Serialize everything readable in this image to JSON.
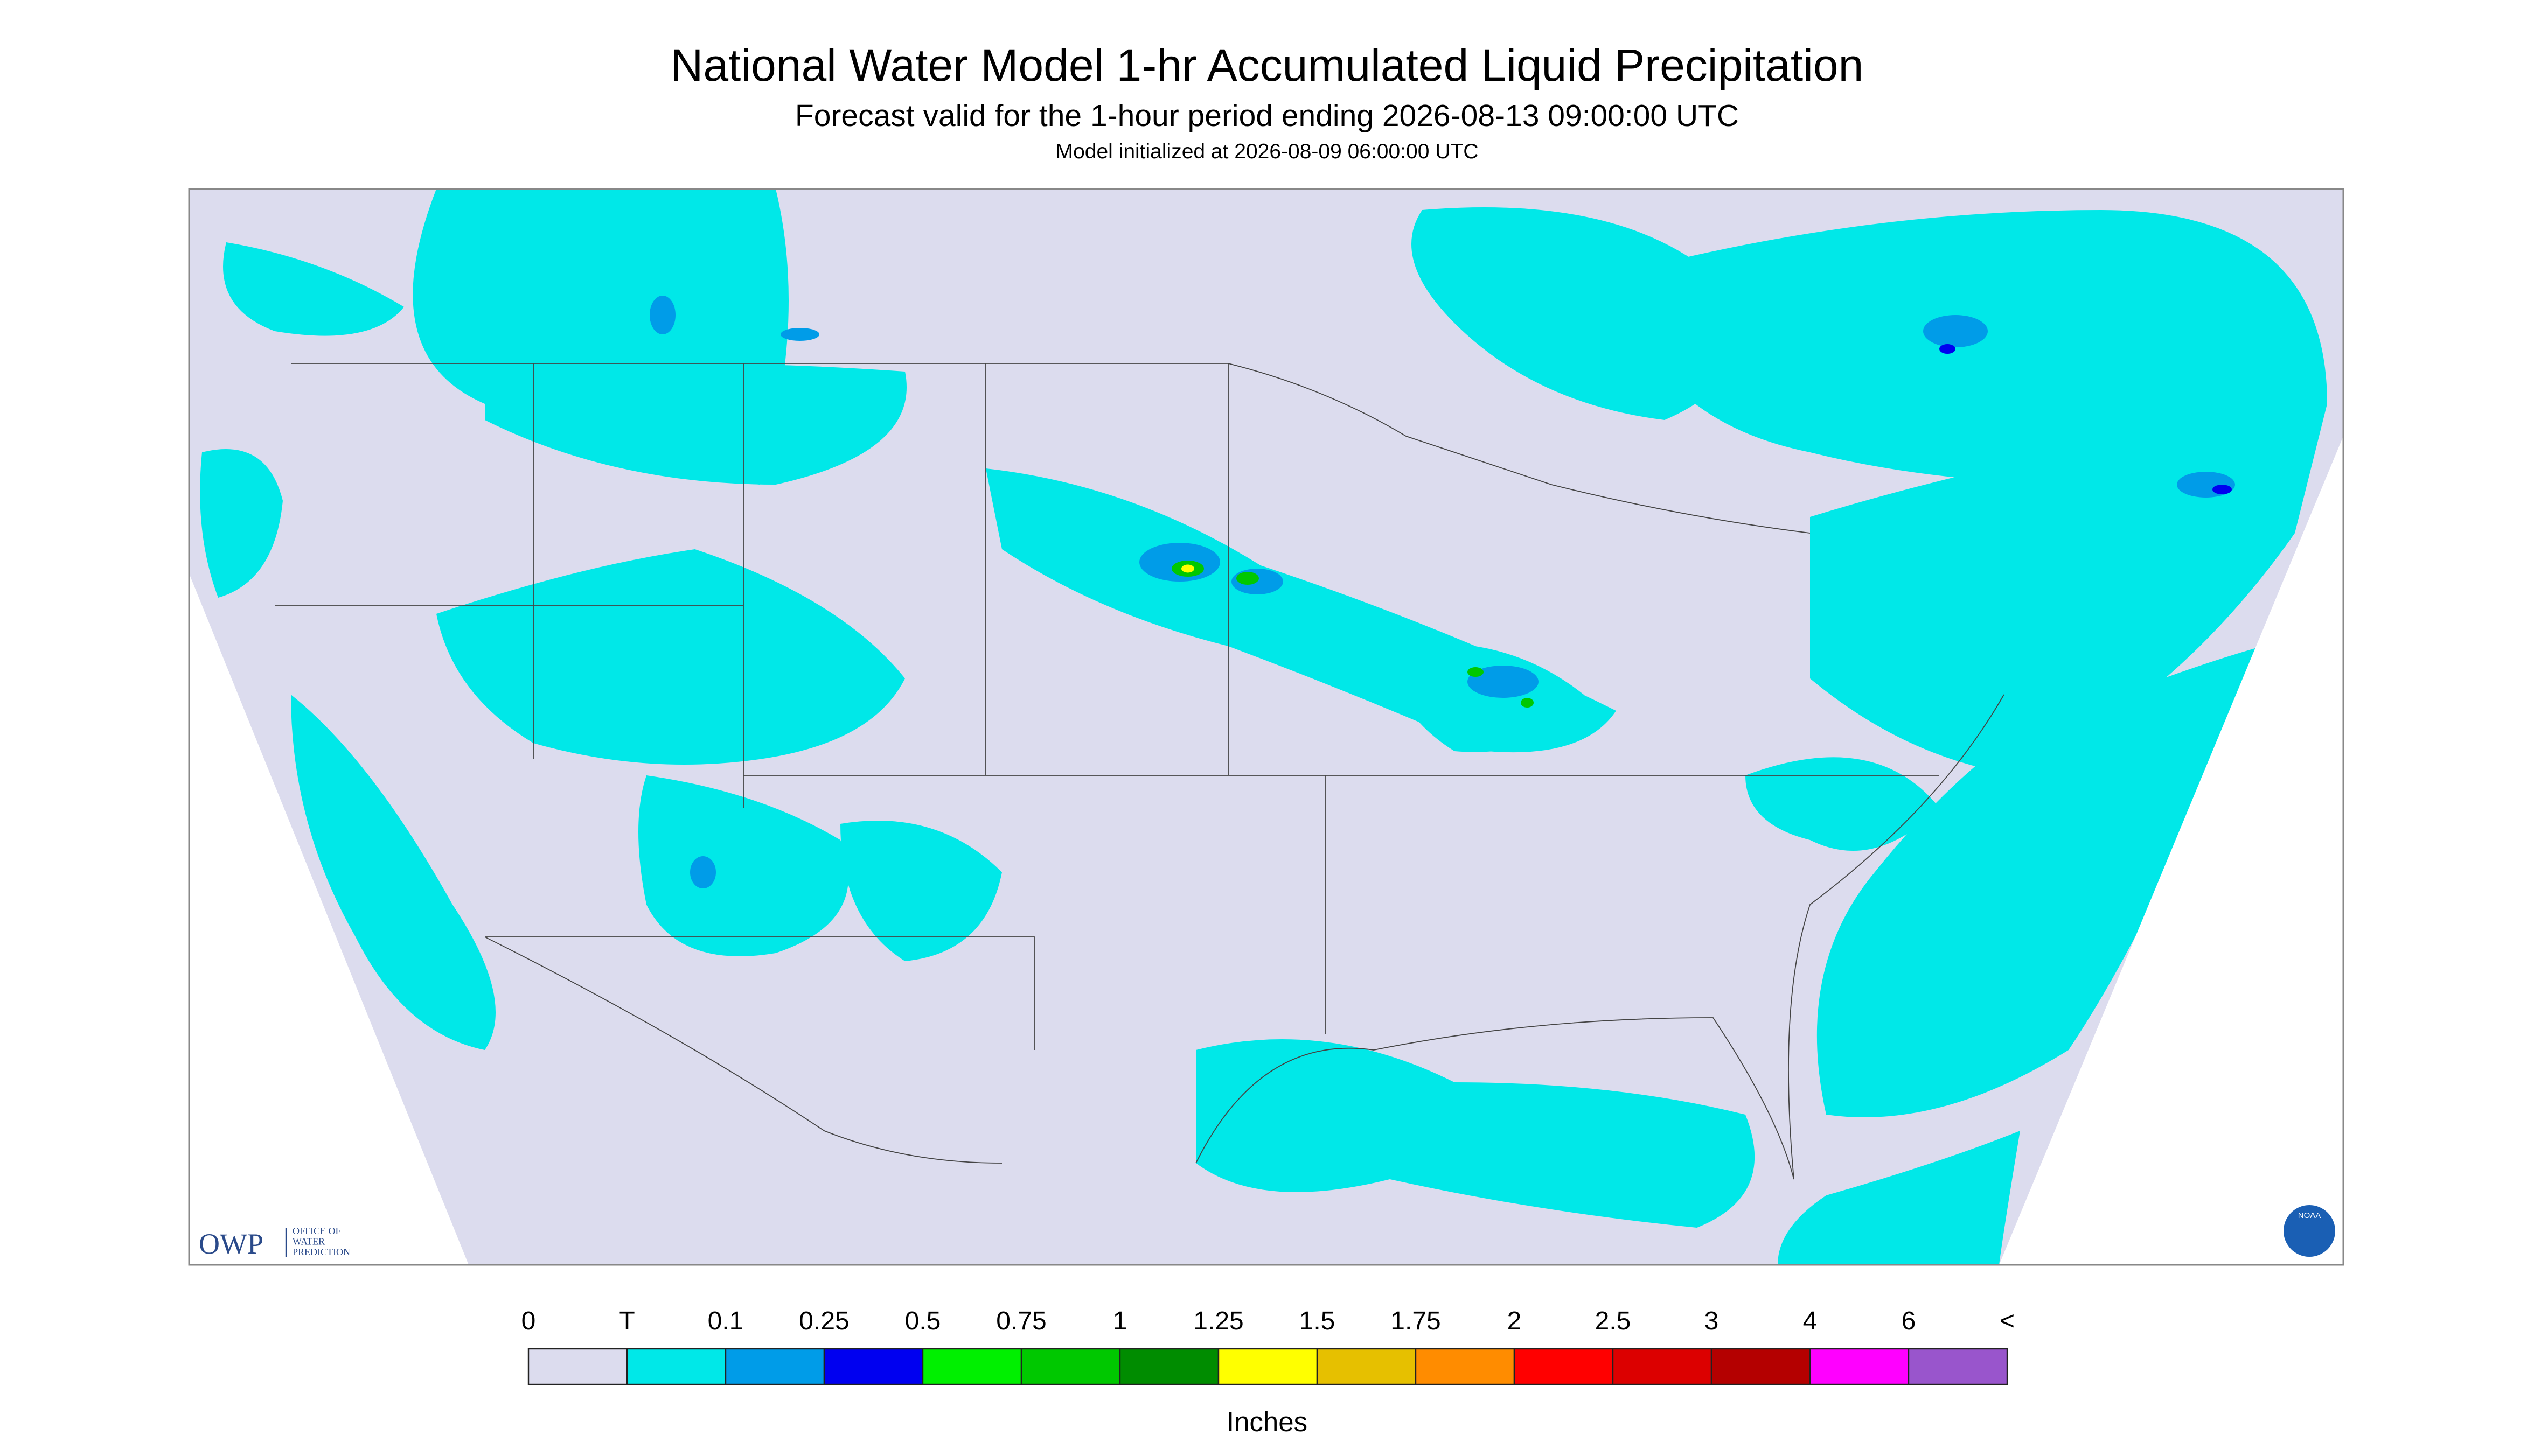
{
  "header": {
    "title": "National Water Model 1-hr Accumulated Liquid Precipitation",
    "subtitle": "Forecast valid for the 1-hour period ending 2026-08-13 09:00:00 UTC",
    "note": "Model initialized at 2026-08-09 06:00:00 UTC"
  },
  "logos": {
    "owp": "OWP",
    "owp_name": [
      "OFFICE OF",
      "WATER",
      "PREDICTION"
    ],
    "noaa": "NOAA"
  },
  "legend": {
    "labels": [
      "0",
      "T",
      "0.1",
      "0.25",
      "0.5",
      "0.75",
      "1",
      "1.25",
      "1.5",
      "1.75",
      "2",
      "2.5",
      "3",
      "4",
      "6",
      "<"
    ],
    "colors": [
      "#dcdcee",
      "#00e8e8",
      "#009ce8",
      "#0000f0",
      "#00f000",
      "#00c800",
      "#008c00",
      "#ffff00",
      "#e6c000",
      "#ff8c00",
      "#ff0000",
      "#dc0000",
      "#b40000",
      "#ff00ff",
      "#9955cc"
    ],
    "unit": "Inches"
  }
}
